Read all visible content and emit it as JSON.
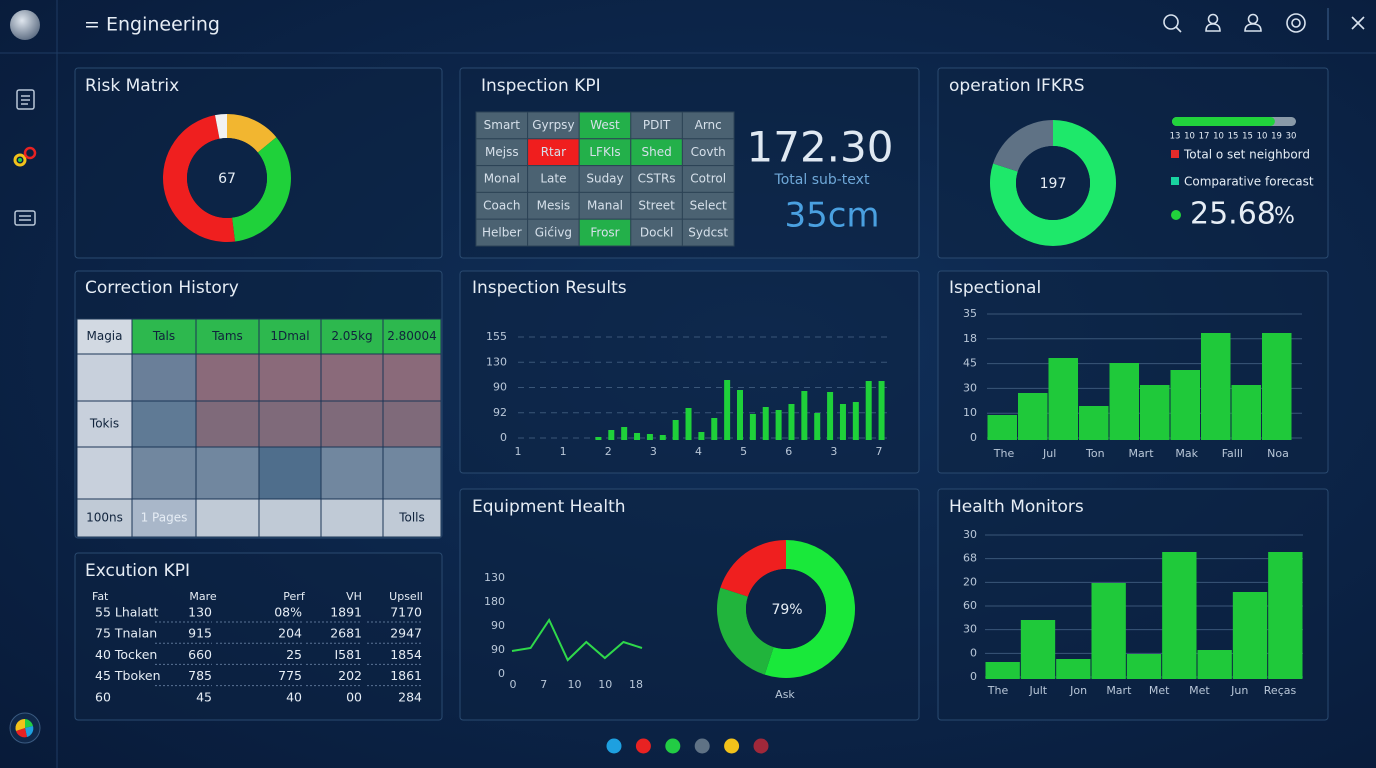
{
  "header": {
    "title": "= Engineering"
  },
  "risk_matrix": {
    "title": "Risk Matrix",
    "center_label": "67",
    "segments": [
      {
        "value": 14,
        "color": "#f2b630"
      },
      {
        "value": 34,
        "color": "#1fd13a"
      },
      {
        "value": 49,
        "color": "#ef1f1f"
      },
      {
        "value": 3,
        "color": "#f2f2f2"
      }
    ]
  },
  "inspection_kpi": {
    "title": "Inspection KPI",
    "grid": [
      [
        "Smart",
        "Gyrpsy",
        "West",
        "PDIT",
        "Arnc"
      ],
      [
        "Mejss",
        "Rtar",
        "LFKIs",
        "Shed",
        "Covth"
      ],
      [
        "Monal",
        "Late",
        "Suday",
        "CSTRs",
        "Cotrol"
      ],
      [
        "Coach",
        "Mesis",
        "Manal",
        "Street",
        "Select"
      ],
      [
        "Helber",
        "Gićivg",
        "Frosr",
        "Dockl",
        "Sydcst"
      ]
    ],
    "cell_colors": [
      [
        "#4b6272",
        "#4b6272",
        "#23b04a",
        "#4b6272",
        "#4b6272"
      ],
      [
        "#4b6272",
        "#f01e1e",
        "#23b04a",
        "#23b04a",
        "#4b6272"
      ],
      [
        "#4b6272",
        "#4b6272",
        "#4b6272",
        "#4b6272",
        "#4b6272"
      ],
      [
        "#4b6272",
        "#4b6272",
        "#4b6272",
        "#4b6272",
        "#4b6272"
      ],
      [
        "#4b6272",
        "#4b6272",
        "#23b04a",
        "#4b6272",
        "#4b6272"
      ]
    ],
    "metric": "172.30",
    "metric_caption": "Total sub-text",
    "secondary_metric": "35cm"
  },
  "operation": {
    "title": "operation IFKRS",
    "center_label": "197",
    "segments": [
      {
        "value": 80,
        "color": "#1ee86a"
      },
      {
        "value": 20,
        "color": "#5f7285"
      }
    ],
    "progress": 83,
    "progress_lim": [
      0,
      100
    ],
    "progress_color": "#22d33c",
    "progress_labels": [
      "13",
      "10",
      "17",
      "10",
      "15",
      "15",
      "10",
      "19",
      "30"
    ],
    "legend": [
      {
        "name": "Total o set neighbord",
        "color": "#e52b2b"
      },
      {
        "name": "Comparative forecast",
        "color": "#19d3a0"
      }
    ],
    "metric": "25.68",
    "metric_unit": "%",
    "metric_color": "#22d33c"
  },
  "correction_history": {
    "title": "Correction History",
    "header": [
      "Magia",
      "Tals",
      "Tams",
      "1Dmal",
      "2.05kg",
      "2.80004"
    ],
    "header_colors": [
      "#d2d9e2",
      "#2db84e",
      "#2db84e",
      "#2db84e",
      "#2db84e",
      "#2db84e"
    ],
    "rows": [
      [
        null,
        null,
        null,
        null,
        null,
        null
      ],
      [
        "Tokis",
        null,
        null,
        null,
        null,
        null
      ],
      [
        null,
        null,
        null,
        null,
        null,
        null
      ],
      [
        "100ns",
        "1 Pages",
        null,
        null,
        null,
        "Tolls"
      ]
    ],
    "cell_colors": [
      [
        "#c8d0dc",
        "#6a7f99",
        "#8a6a7a",
        "#8a6a7a",
        "#8a6a7a",
        "#8a6a7a"
      ],
      [
        "#c8d0dc",
        "#5f7a95",
        "#7f6a7a",
        "#7f6a7a",
        "#7f6a7a",
        "#7f6a7a"
      ],
      [
        "#c8d0dc",
        "#71879f",
        "#71879f",
        "#4f6e8c",
        "#71879f",
        "#71879f"
      ],
      [
        "#c0cad6",
        "#a9b7c9",
        "#c0cad6",
        "#c0cad6",
        "#c0cad6",
        "#c0cad6"
      ]
    ]
  },
  "execution_kpi": {
    "title": "Excution KPI",
    "header": [
      "Fat",
      "Mare",
      "Perf",
      "VH",
      "Upsell"
    ],
    "rows": [
      [
        "55 Lhalatt",
        "130",
        "08%",
        "1891",
        "7170"
      ],
      [
        "75 Tnalan",
        "915",
        "204",
        "2681",
        "2947"
      ],
      [
        "40 Tocken",
        "660",
        "25",
        "I581",
        "1854"
      ],
      [
        "45 Tboken",
        "785",
        "775",
        "202",
        "1861"
      ],
      [
        "60",
        "45",
        "40",
        "00",
        "284"
      ]
    ]
  },
  "inspection_results": {
    "title": "Inspection Results",
    "type": "bar",
    "color": "#1fd13a",
    "values": [
      3,
      10,
      13,
      7,
      6,
      5,
      20,
      32,
      8,
      22,
      60,
      50,
      26,
      33,
      30,
      36,
      49,
      27,
      48,
      36,
      38,
      59,
      59
    ],
    "ylim": [
      0,
      103
    ],
    "y_axis_labels": [
      "155",
      "130",
      "90",
      "92",
      "0"
    ],
    "x_axis_labels": [
      "1",
      "1",
      "2",
      "3",
      "4",
      "5",
      "6",
      "3",
      "7"
    ]
  },
  "ispectional": {
    "title": "Ispectional",
    "type": "bar",
    "color": "#1fc93a",
    "values": [
      25,
      47,
      82,
      34,
      77,
      55,
      70,
      107,
      55,
      107
    ],
    "ylim": [
      0,
      125
    ],
    "y_axis_labels": [
      "35",
      "18",
      "45",
      "30",
      "10",
      "0"
    ],
    "x_axis_labels": [
      "The",
      "Jul",
      "Ton",
      "Mart",
      "Mak",
      "Falll",
      "Noa"
    ]
  },
  "equipment_health": {
    "title": "Equipment Health",
    "line": {
      "type": "line",
      "color": "#2fd94a",
      "values": [
        23,
        26,
        54,
        14,
        32,
        16,
        32,
        26
      ],
      "ylim": [
        0,
        96
      ],
      "y_axis_labels": [
        "130",
        "180",
        "90",
        "90",
        "0"
      ],
      "x_axis_labels": [
        "0",
        "7",
        "10",
        "10",
        "18"
      ]
    },
    "donut": {
      "center_label": "79%",
      "caption": "Ask",
      "segments": [
        {
          "value": 55,
          "color": "#19e83a"
        },
        {
          "value": 25,
          "color": "#21b43c"
        },
        {
          "value": 20,
          "color": "#ef1f1f"
        }
      ]
    }
  },
  "health_monitors": {
    "title": "Health Monitors",
    "type": "bar",
    "color": "#1fc93a",
    "values": [
      17,
      59,
      20,
      96,
      25,
      127,
      29,
      87,
      127
    ],
    "ylim": [
      0,
      144
    ],
    "y_axis_labels": [
      "30",
      "68",
      "20",
      "60",
      "30",
      "0",
      "0"
    ],
    "x_axis_labels": [
      "The",
      "Jult",
      "Jon",
      "Mart",
      "Met",
      "Met",
      "Jun",
      "Reças"
    ]
  },
  "pager": {
    "dots": [
      "#1ea0e0",
      "#e82222",
      "#22cc44",
      "#5f7285",
      "#f2c21a",
      "#a0283a"
    ]
  }
}
